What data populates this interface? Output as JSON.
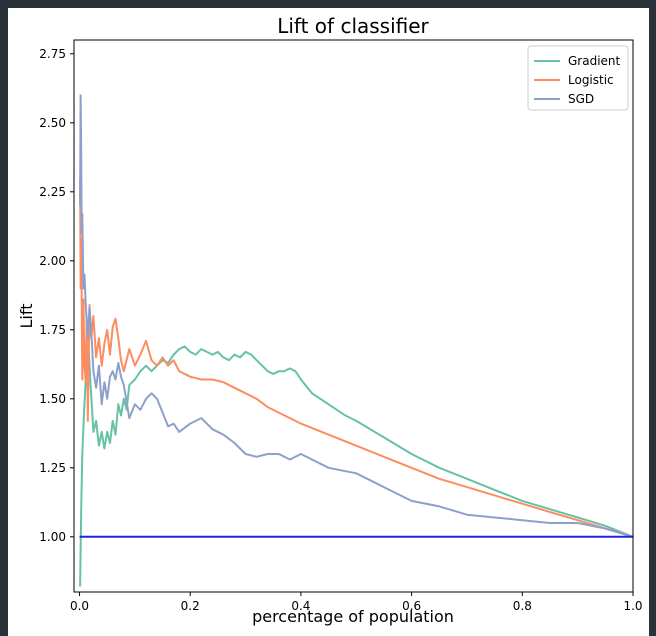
{
  "chart_data": {
    "type": "line",
    "title": "Lift of classifier",
    "xlabel": "percentage of population",
    "ylabel": "Lift",
    "xlim": [
      -0.01,
      1.0
    ],
    "ylim": [
      0.8,
      2.8
    ],
    "xticks": [
      "0.0",
      "0.2",
      "0.4",
      "0.6",
      "0.8",
      "1.0"
    ],
    "yticks": [
      "1.00",
      "1.25",
      "1.50",
      "1.75",
      "2.00",
      "2.25",
      "2.50",
      "2.75"
    ],
    "legend_position": "top-right",
    "grid": false,
    "baseline": {
      "y": 1.0,
      "color": "#2222dd"
    },
    "series": [
      {
        "name": "Gradient",
        "color": "#66c2a5",
        "x": [
          0.001,
          0.003,
          0.005,
          0.008,
          0.012,
          0.016,
          0.02,
          0.025,
          0.03,
          0.035,
          0.04,
          0.045,
          0.05,
          0.055,
          0.06,
          0.065,
          0.07,
          0.075,
          0.08,
          0.085,
          0.09,
          0.1,
          0.11,
          0.12,
          0.13,
          0.14,
          0.15,
          0.16,
          0.17,
          0.18,
          0.19,
          0.2,
          0.21,
          0.22,
          0.23,
          0.24,
          0.25,
          0.26,
          0.27,
          0.28,
          0.29,
          0.3,
          0.31,
          0.32,
          0.33,
          0.34,
          0.35,
          0.36,
          0.37,
          0.38,
          0.39,
          0.4,
          0.42,
          0.45,
          0.48,
          0.5,
          0.55,
          0.6,
          0.65,
          0.7,
          0.75,
          0.8,
          0.85,
          0.9,
          0.95,
          1.0
        ],
        "values": [
          0.82,
          1.1,
          1.3,
          1.45,
          1.6,
          1.7,
          1.55,
          1.38,
          1.42,
          1.33,
          1.38,
          1.32,
          1.38,
          1.34,
          1.42,
          1.37,
          1.48,
          1.44,
          1.5,
          1.46,
          1.55,
          1.57,
          1.6,
          1.62,
          1.6,
          1.62,
          1.64,
          1.63,
          1.66,
          1.68,
          1.69,
          1.67,
          1.66,
          1.68,
          1.67,
          1.66,
          1.67,
          1.65,
          1.64,
          1.66,
          1.65,
          1.67,
          1.66,
          1.64,
          1.62,
          1.6,
          1.59,
          1.6,
          1.6,
          1.61,
          1.6,
          1.57,
          1.52,
          1.48,
          1.44,
          1.42,
          1.36,
          1.3,
          1.25,
          1.21,
          1.17,
          1.13,
          1.1,
          1.07,
          1.04,
          1.0
        ]
      },
      {
        "name": "Logistic",
        "color": "#fc8d62",
        "x": [
          0.001,
          0.002,
          0.003,
          0.005,
          0.007,
          0.009,
          0.011,
          0.013,
          0.015,
          0.018,
          0.021,
          0.025,
          0.03,
          0.035,
          0.04,
          0.045,
          0.05,
          0.055,
          0.06,
          0.065,
          0.07,
          0.075,
          0.08,
          0.09,
          0.1,
          0.11,
          0.12,
          0.13,
          0.14,
          0.15,
          0.16,
          0.17,
          0.18,
          0.2,
          0.22,
          0.24,
          0.26,
          0.28,
          0.3,
          0.32,
          0.34,
          0.36,
          0.38,
          0.4,
          0.45,
          0.5,
          0.55,
          0.6,
          0.65,
          0.7,
          0.75,
          0.8,
          0.85,
          0.9,
          0.95,
          1.0
        ],
        "values": [
          2.3,
          1.9,
          2.08,
          1.57,
          1.86,
          1.62,
          1.56,
          1.8,
          1.42,
          1.84,
          1.72,
          1.8,
          1.65,
          1.72,
          1.62,
          1.7,
          1.75,
          1.66,
          1.76,
          1.79,
          1.72,
          1.64,
          1.6,
          1.68,
          1.62,
          1.66,
          1.71,
          1.64,
          1.62,
          1.65,
          1.62,
          1.64,
          1.6,
          1.58,
          1.57,
          1.57,
          1.56,
          1.54,
          1.52,
          1.5,
          1.47,
          1.45,
          1.43,
          1.41,
          1.37,
          1.33,
          1.29,
          1.25,
          1.21,
          1.18,
          1.15,
          1.12,
          1.09,
          1.06,
          1.03,
          1.0
        ]
      },
      {
        "name": "SGD",
        "color": "#8da0cb",
        "x": [
          0.001,
          0.002,
          0.003,
          0.004,
          0.005,
          0.007,
          0.009,
          0.011,
          0.013,
          0.015,
          0.018,
          0.021,
          0.025,
          0.03,
          0.035,
          0.04,
          0.045,
          0.05,
          0.055,
          0.06,
          0.065,
          0.07,
          0.075,
          0.08,
          0.09,
          0.1,
          0.11,
          0.12,
          0.13,
          0.14,
          0.15,
          0.16,
          0.17,
          0.18,
          0.2,
          0.22,
          0.24,
          0.26,
          0.28,
          0.3,
          0.32,
          0.34,
          0.36,
          0.38,
          0.4,
          0.45,
          0.5,
          0.55,
          0.6,
          0.65,
          0.7,
          0.75,
          0.8,
          0.85,
          0.9,
          0.95,
          1.0
        ],
        "values": [
          2.2,
          2.6,
          2.4,
          2.1,
          2.17,
          1.9,
          1.95,
          1.85,
          1.78,
          1.72,
          1.83,
          1.75,
          1.6,
          1.54,
          1.62,
          1.48,
          1.56,
          1.5,
          1.58,
          1.6,
          1.57,
          1.63,
          1.58,
          1.55,
          1.43,
          1.48,
          1.46,
          1.5,
          1.52,
          1.5,
          1.45,
          1.4,
          1.41,
          1.38,
          1.41,
          1.43,
          1.39,
          1.37,
          1.34,
          1.3,
          1.29,
          1.3,
          1.3,
          1.28,
          1.3,
          1.25,
          1.23,
          1.18,
          1.13,
          1.11,
          1.08,
          1.07,
          1.06,
          1.05,
          1.05,
          1.03,
          1.0
        ]
      }
    ]
  }
}
